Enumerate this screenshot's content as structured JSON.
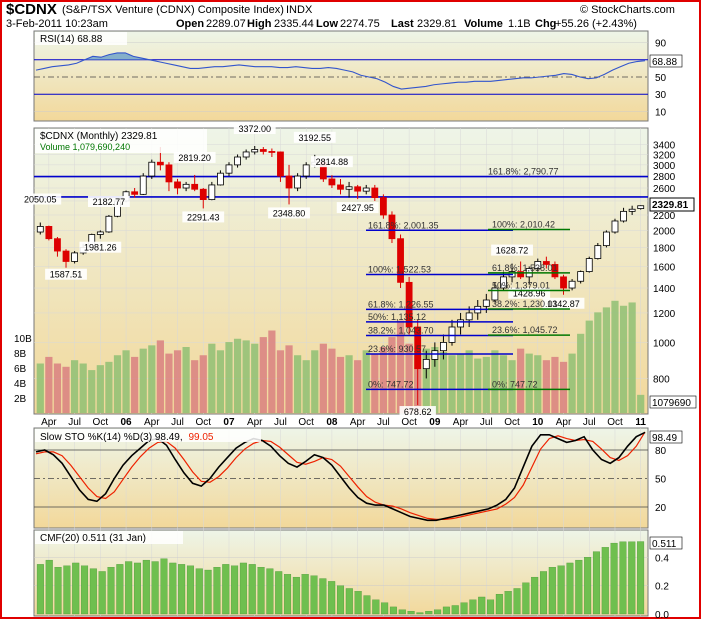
{
  "header": {
    "symbol": "$CDNX",
    "name": "(S&P/TSX Venture (CDNX) Composite Index)",
    "exchange": "INDX",
    "watermark": "© StockCharts.com",
    "date": "3-Feb-2011 10:23am",
    "open_label": "Open",
    "open": "2289.07",
    "high_label": "High",
    "high": "2335.44",
    "low_label": "Low",
    "low": "2274.75",
    "last_label": "Last",
    "last": "2329.81",
    "volume_label": "Volume",
    "volume": "1.1B",
    "chg_label": "Chg",
    "chg": "+55.26 (+2.43%)"
  },
  "colors": {
    "up": "#000000",
    "down": "#dd0000",
    "rsi_line": "#3355cc",
    "blue_line": "#0000cc",
    "green_line": "#007700",
    "volume_up": "#8fbf73",
    "volume_down": "#d98080",
    "sto_k": "#000000",
    "sto_d": "#ee2200",
    "cmf": "#6fbf4f",
    "bg_top": "#eef5e8",
    "bg_bottom": "#f2d89a"
  },
  "chart_data": [
    {
      "type": "line",
      "panel": "rsi",
      "title": "RSI(14) 68.88",
      "current": "68.88",
      "ylim": [
        0,
        100
      ],
      "ticks": [
        "90",
        "70",
        "50",
        "30",
        "10"
      ],
      "values": [
        58,
        60,
        62,
        63,
        64,
        66,
        70,
        74,
        73,
        76,
        78,
        78,
        74,
        72,
        70,
        68,
        66,
        64,
        62,
        60,
        60,
        61,
        62,
        62,
        63,
        64,
        63,
        62,
        62,
        62,
        61,
        61,
        62,
        61,
        60,
        60,
        61,
        60,
        58,
        56,
        52,
        50,
        48,
        44,
        39,
        36,
        37,
        38,
        39,
        41,
        42,
        43,
        44,
        44,
        45,
        45,
        45,
        46,
        47,
        48,
        49,
        49,
        50,
        51,
        52,
        54,
        53,
        50,
        48,
        49,
        53,
        58,
        62,
        66,
        68,
        69
      ]
    },
    {
      "type": "candlestick",
      "panel": "price",
      "title": "$CDNX (Monthly) 2329.81",
      "volume_label": "Volume 1,079,690,240",
      "ylim": [
        650,
        3700
      ],
      "log_scale": true,
      "y_ticks": [
        "3400",
        "3200",
        "3000",
        "2800",
        "2600",
        "2400",
        "2200",
        "2000",
        "1800",
        "1600",
        "1400",
        "1200",
        "1000",
        "800"
      ],
      "x_ticks": [
        "Apr",
        "Jul",
        "Oct",
        "06",
        "Apr",
        "Jul",
        "Oct",
        "07",
        "Apr",
        "Jul",
        "Oct",
        "08",
        "Apr",
        "Jul",
        "Oct",
        "09",
        "Apr",
        "Jul",
        "Oct",
        "10",
        "Apr",
        "Jul",
        "Oct",
        "11"
      ],
      "volume_ticks": [
        "10B",
        "8B",
        "6B",
        "4B",
        "2B"
      ],
      "last_price": "2329.81",
      "last_volume": "1079690",
      "candles": [
        [
          1980,
          2100,
          1950,
          2050
        ],
        [
          2050,
          2060,
          1880,
          1900
        ],
        [
          1900,
          1920,
          1700,
          1760
        ],
        [
          1760,
          1780,
          1587.51,
          1650
        ],
        [
          1650,
          1760,
          1630,
          1740
        ],
        [
          1740,
          1840,
          1720,
          1800
        ],
        [
          1800,
          1960,
          1790,
          1950
        ],
        [
          1950,
          2000,
          1900,
          1981.26
        ],
        [
          1981.26,
          2200,
          1970,
          2182.77
        ],
        [
          2182.77,
          2420,
          2170,
          2400
        ],
        [
          2400,
          2560,
          2380,
          2540
        ],
        [
          2540,
          2600,
          2450,
          2500
        ],
        [
          2500,
          2850,
          2490,
          2800
        ],
        [
          2800,
          3100,
          2750,
          3050
        ],
        [
          3050,
          3350,
          2900,
          3000
        ],
        [
          3000,
          3050,
          2550,
          2700
        ],
        [
          2700,
          2750,
          2500,
          2600
        ],
        [
          2600,
          2700,
          2550,
          2660
        ],
        [
          2660,
          2819.2,
          2550,
          2580
        ],
        [
          2580,
          2600,
          2291.43,
          2420
        ],
        [
          2420,
          2700,
          2410,
          2650
        ],
        [
          2650,
          2900,
          2640,
          2850
        ],
        [
          2850,
          3050,
          2800,
          3000
        ],
        [
          3000,
          3200,
          2950,
          3150
        ],
        [
          3150,
          3300,
          3100,
          3250
        ],
        [
          3250,
          3372.0,
          3200,
          3300
        ],
        [
          3300,
          3350,
          3200,
          3260
        ],
        [
          3260,
          3320,
          3150,
          3250
        ],
        [
          3250,
          3260,
          2700,
          2800
        ],
        [
          2800,
          3000,
          2348.8,
          2600
        ],
        [
          2600,
          2850,
          2550,
          2800
        ],
        [
          2800,
          3050,
          2750,
          3000
        ],
        [
          3000,
          3192.55,
          2950,
          3050
        ],
        [
          3050,
          3100,
          2700,
          2750
        ],
        [
          2750,
          2814.88,
          2600,
          2650
        ],
        [
          2650,
          2750,
          2500,
          2580
        ],
        [
          2580,
          2700,
          2450,
          2620
        ],
        [
          2620,
          2650,
          2427.95,
          2550
        ],
        [
          2550,
          2650,
          2500,
          2600
        ],
        [
          2600,
          2650,
          2400,
          2450
        ],
        [
          2450,
          2500,
          2150,
          2200
        ],
        [
          2200,
          2250,
          1850,
          1900
        ],
        [
          1900,
          1950,
          1400,
          1450
        ],
        [
          1450,
          1500,
          1050,
          1100
        ],
        [
          1100,
          1150,
          678.62,
          850
        ],
        [
          850,
          950,
          800,
          900
        ],
        [
          900,
          1000,
          860,
          950
        ],
        [
          950,
          1050,
          900,
          1000
        ],
        [
          1000,
          1150,
          980,
          1100
        ],
        [
          1100,
          1200,
          1050,
          1150
        ],
        [
          1150,
          1250,
          1100,
          1200
        ],
        [
          1200,
          1300,
          1150,
          1250
        ],
        [
          1250,
          1350,
          1200,
          1300
        ],
        [
          1300,
          1450,
          1280,
          1400
        ],
        [
          1400,
          1550,
          1380,
          1500
        ],
        [
          1500,
          1628.72,
          1450,
          1550
        ],
        [
          1550,
          1650,
          1480,
          1500
        ],
        [
          1500,
          1600,
          1428.96,
          1580
        ],
        [
          1580,
          1680,
          1550,
          1650
        ],
        [
          1650,
          1700,
          1580,
          1620
        ],
        [
          1620,
          1650,
          1480,
          1500
        ],
        [
          1500,
          1520,
          1342.87,
          1400
        ],
        [
          1400,
          1480,
          1380,
          1460
        ],
        [
          1460,
          1560,
          1440,
          1550
        ],
        [
          1550,
          1700,
          1540,
          1680
        ],
        [
          1680,
          1850,
          1670,
          1820
        ],
        [
          1820,
          2000,
          1800,
          1980
        ],
        [
          1980,
          2150,
          1960,
          2120
        ],
        [
          2120,
          2300,
          2100,
          2250
        ],
        [
          2250,
          2330,
          2200,
          2280
        ],
        [
          2289.07,
          2335.44,
          2274.75,
          2329.81
        ]
      ],
      "volumes": [
        3,
        3.4,
        3,
        2.8,
        3.2,
        3,
        2.6,
        2.9,
        3.1,
        3.5,
        3.8,
        3.4,
        3.9,
        4.1,
        4.4,
        3.6,
        3.8,
        4,
        3.2,
        3.5,
        4.2,
        3.8,
        4.3,
        4.5,
        4.4,
        4.2,
        4.6,
        5,
        3.8,
        4.1,
        3.5,
        3.2,
        3.8,
        4.2,
        3.9,
        3.4,
        3.5,
        3.2,
        3.8,
        3.6,
        4,
        4.6,
        5.6,
        4.2,
        3.5,
        3.9,
        4,
        3.7,
        3.5,
        3.6,
        3.8,
        3.3,
        3.4,
        3.8,
        3.5,
        3.2,
        3.9,
        3.6,
        3.5,
        3.2,
        3.4,
        3.1,
        3.6,
        4.8,
        5.6,
        6.1,
        6.4,
        6.8,
        6.5,
        6.7,
        1.1
      ],
      "labels": [
        "2050.05",
        "1587.51",
        "2182.77",
        "1981.26",
        "2819.20",
        "2291.43",
        "3372.00",
        "2348.80",
        "3192.55",
        "2814.88",
        "2427.95",
        "678.62",
        "1628.72",
        "1428.96",
        "1342.87"
      ],
      "fib_top": {
        "label_1618": "161.8%: 2,790.77",
        "label_100": "100%: 2,010.42",
        "label_618": "61.8%: 1,538.01",
        "label_50": "50%: 1,379.01",
        "label_382": "38.2%: 1,230.01",
        "label_236": "23.6%: 1,045.72",
        "label_0": "0%: 747.72"
      },
      "fib_bottom": {
        "label_1618": "161.8%: 2,001.35",
        "label_100": "100%: 1,522.53",
        "label_618": "61.8%: 1,226.55",
        "label_50": "50%: 1,135.12",
        "label_382": "38.2%: 1,043.70",
        "label_236": "23.6%: 930.57",
        "label_0": "0%: 747.72"
      },
      "horizontal_lines": [
        2790.77,
        2460
      ]
    },
    {
      "type": "line",
      "panel": "slow-sto",
      "title": "Slow STO %K(14) %D(3) 98.49, 99.05",
      "title_black": "Slow STO %K(14) %D(3) 98.49,",
      "title_red": "99.05",
      "current": "98.49",
      "ylim": [
        0,
        100
      ],
      "ticks": [
        "80",
        "50",
        "20"
      ],
      "k": [
        78,
        80,
        75,
        66,
        52,
        38,
        28,
        26,
        34,
        50,
        64,
        74,
        82,
        90,
        92,
        85,
        70,
        56,
        45,
        42,
        50,
        62,
        72,
        82,
        88,
        92,
        90,
        84,
        74,
        66,
        62,
        68,
        75,
        72,
        64,
        52,
        40,
        30,
        24,
        22,
        22,
        18,
        14,
        10,
        8,
        6,
        6,
        8,
        10,
        12,
        14,
        16,
        18,
        22,
        28,
        40,
        62,
        84,
        96,
        96,
        92,
        88,
        90,
        94,
        80,
        70,
        66,
        72,
        84,
        94,
        98.49
      ],
      "d": [
        76,
        78,
        78,
        74,
        64,
        52,
        40,
        31,
        29,
        36,
        49,
        62,
        73,
        82,
        88,
        89,
        82,
        70,
        57,
        47,
        46,
        52,
        61,
        72,
        81,
        87,
        90,
        89,
        83,
        75,
        67,
        65,
        68,
        72,
        70,
        63,
        52,
        41,
        31,
        25,
        22,
        21,
        18,
        14,
        11,
        8,
        7,
        7,
        8,
        10,
        12,
        14,
        16,
        18,
        23,
        30,
        43,
        62,
        81,
        92,
        95,
        92,
        90,
        91,
        89,
        81,
        72,
        69,
        74,
        84,
        99.05
      ]
    },
    {
      "type": "bar",
      "panel": "cmf",
      "title": "CMF(20) 0.511 (31 Jan)",
      "current": "0.511",
      "ylim": [
        0,
        0.55
      ],
      "ticks": [
        "0.4",
        "0.2",
        "0.0"
      ],
      "values": [
        0.35,
        0.38,
        0.33,
        0.34,
        0.36,
        0.34,
        0.32,
        0.3,
        0.33,
        0.35,
        0.37,
        0.36,
        0.38,
        0.37,
        0.39,
        0.36,
        0.35,
        0.34,
        0.32,
        0.31,
        0.33,
        0.35,
        0.34,
        0.36,
        0.35,
        0.33,
        0.32,
        0.3,
        0.28,
        0.26,
        0.28,
        0.27,
        0.25,
        0.23,
        0.2,
        0.18,
        0.16,
        0.13,
        0.1,
        0.08,
        0.05,
        0.03,
        0.02,
        0.01,
        0.02,
        0.03,
        0.05,
        0.06,
        0.08,
        0.1,
        0.12,
        0.1,
        0.14,
        0.16,
        0.18,
        0.22,
        0.26,
        0.3,
        0.33,
        0.34,
        0.36,
        0.38,
        0.4,
        0.44,
        0.47,
        0.5,
        0.51,
        0.51,
        0.511
      ]
    }
  ]
}
